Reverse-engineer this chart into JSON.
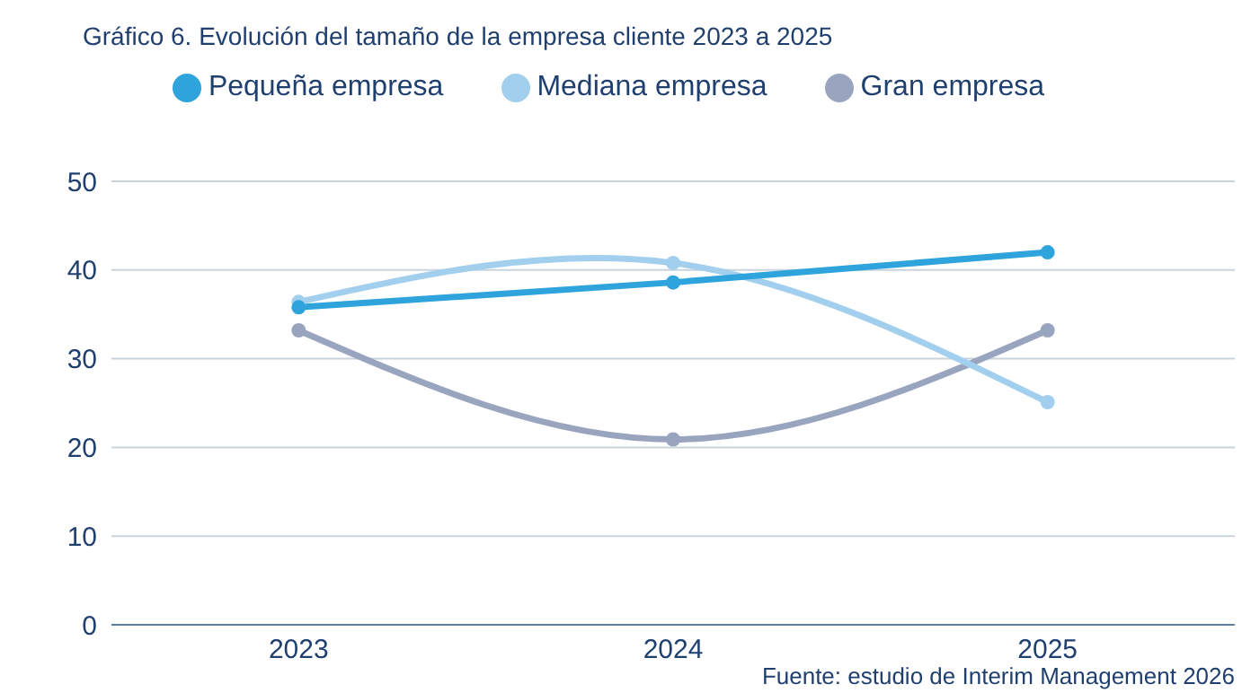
{
  "chart_data": {
    "type": "line",
    "title": "Gráfico 6. Evolución del tamaño de la empresa cliente 2023 a 2025",
    "categories": [
      "2023",
      "2024",
      "2025"
    ],
    "series": [
      {
        "name": "Pequeña empresa",
        "color": "#2ea3dc",
        "values": [
          35.8,
          38.6,
          42.0
        ]
      },
      {
        "name": "Mediana empresa",
        "color": "#a3cfee",
        "values": [
          36.4,
          40.8,
          25.1
        ]
      },
      {
        "name": "Gran empresa",
        "color": "#99a5bf",
        "values": [
          33.2,
          20.9,
          33.2
        ]
      }
    ],
    "ylim": [
      0,
      50
    ],
    "yticks": [
      0,
      10,
      20,
      30,
      40,
      50
    ],
    "grid": "y",
    "legend": "top",
    "marker": "circle",
    "line_style": "solid",
    "annotations": [
      "Fuente: estudio de Interim Management 2026"
    ]
  }
}
